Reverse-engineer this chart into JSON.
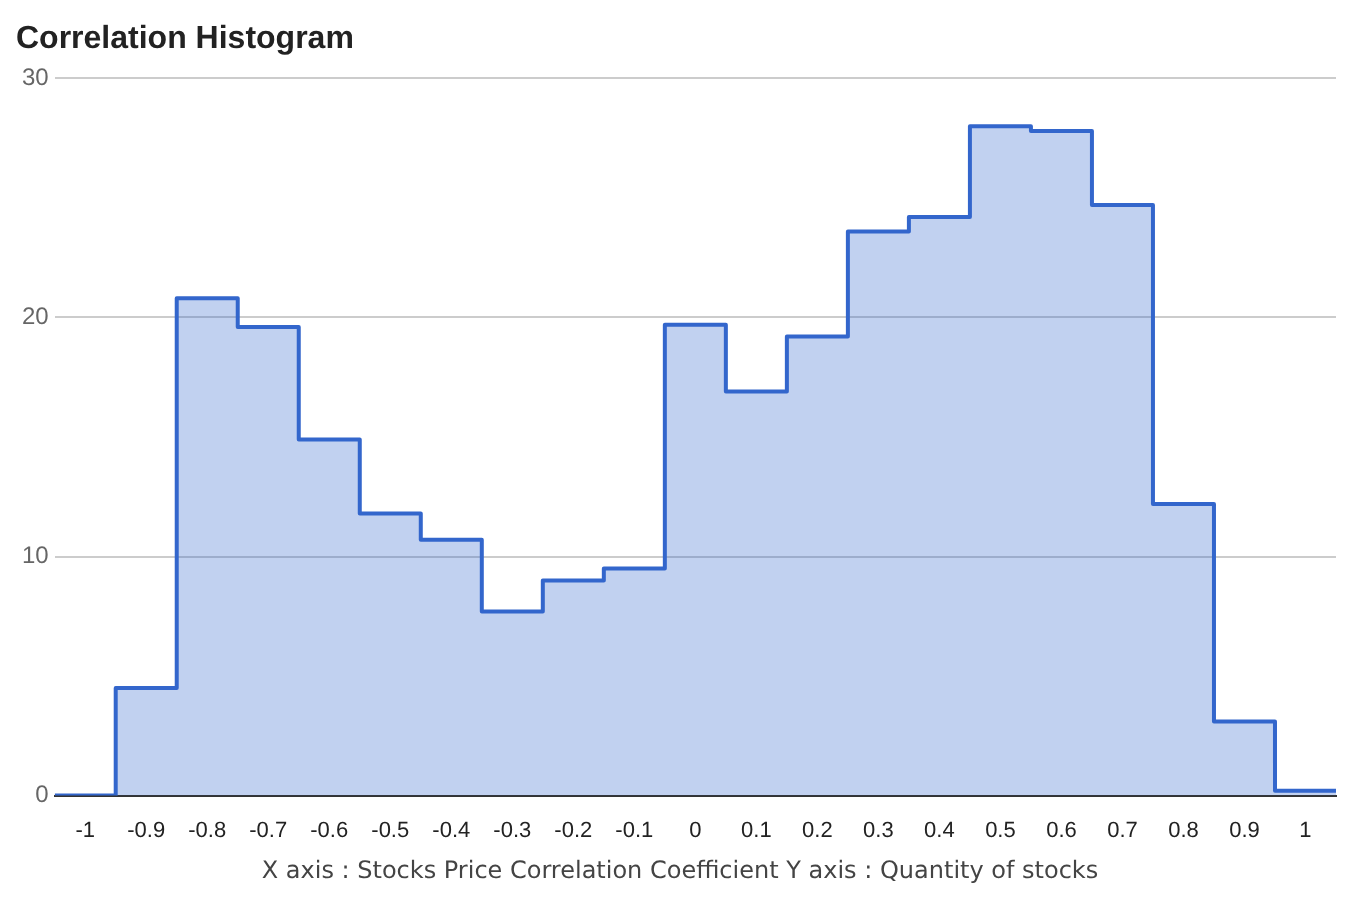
{
  "chart_data": {
    "type": "histogram",
    "title": "Correlation Histogram",
    "bins": [
      -1.05,
      -0.95,
      -0.85,
      -0.75,
      -0.65,
      -0.55,
      -0.45,
      -0.35,
      -0.25,
      -0.15,
      -0.05,
      0.05,
      0.15,
      0.25,
      0.35,
      0.45,
      0.55,
      0.65,
      0.75,
      0.85,
      0.95,
      1.05
    ],
    "values": [
      0,
      4.5,
      20.8,
      19.6,
      14.9,
      11.8,
      10.7,
      7.7,
      9.0,
      9.5,
      19.7,
      16.9,
      19.2,
      23.6,
      24.2,
      28.0,
      27.8,
      24.7,
      12.2,
      3.1,
      0.2
    ],
    "color": "#3366cc",
    "xlim": [
      -1.05,
      1.05
    ],
    "xticks": [
      -1,
      -0.9,
      -0.8,
      -0.7,
      -0.6,
      -0.5,
      -0.4,
      -0.3,
      -0.2,
      -0.1,
      0,
      0.1,
      0.2,
      0.3,
      0.4,
      0.5,
      0.6,
      0.7,
      0.8,
      0.9,
      1
    ],
    "ylim": [
      0,
      30
    ],
    "yticks": [
      0,
      10,
      20,
      30
    ],
    "grid": "y",
    "annotations": [
      "X axis : Stocks Price Correlation Coefficient  Y axis : Quantity of stocks"
    ]
  }
}
